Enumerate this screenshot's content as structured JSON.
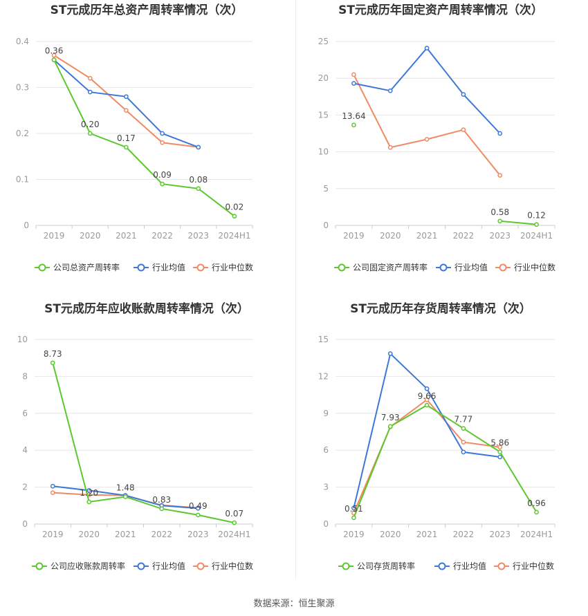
{
  "colors": {
    "company": "#5cc72e",
    "industry_avg": "#3b78d8",
    "industry_median": "#f08a63",
    "grid": "#e6e6e6",
    "axis_text": "#999999",
    "label_text": "#444444"
  },
  "source_text": "数据来源：恒生聚源",
  "chart_data": [
    {
      "type": "line",
      "title": "ST元成历年总资产周转率情况（次）",
      "categories": [
        "2019",
        "2020",
        "2021",
        "2022",
        "2023",
        "2024H1"
      ],
      "ylim": [
        0,
        0.4
      ],
      "yticks": [
        0,
        0.1,
        0.2,
        0.3,
        0.4
      ],
      "ytick_labels": [
        "0",
        "0.1",
        "0.2",
        "0.3",
        "0.4"
      ],
      "grid": true,
      "legend_position": "bottom",
      "series": [
        {
          "name": "公司总资产周转率",
          "role": "company",
          "values": [
            0.36,
            0.2,
            0.17,
            0.09,
            0.08,
            0.02
          ],
          "labels": [
            "0.36",
            "0.20",
            "0.17",
            "0.09",
            "0.08",
            "0.02"
          ]
        },
        {
          "name": "行业均值",
          "role": "industry_avg",
          "values": [
            0.36,
            0.29,
            0.28,
            0.2,
            0.17,
            null
          ]
        },
        {
          "name": "行业中位数",
          "role": "industry_median",
          "values": [
            0.37,
            0.32,
            0.25,
            0.18,
            0.17,
            null
          ]
        }
      ]
    },
    {
      "type": "line",
      "title": "ST元成历年固定资产周转率情况（次）",
      "categories": [
        "2019",
        "2020",
        "2021",
        "2022",
        "2023",
        "2024H1"
      ],
      "ylim": [
        0,
        25
      ],
      "yticks": [
        0,
        5,
        10,
        15,
        20,
        25
      ],
      "ytick_labels": [
        "0",
        "5",
        "10",
        "15",
        "20",
        "25"
      ],
      "grid": true,
      "legend_position": "bottom",
      "series": [
        {
          "name": "公司固定资产周转率",
          "role": "company",
          "values": [
            13.64,
            null,
            null,
            null,
            0.58,
            0.12
          ],
          "labels": [
            "13.64",
            null,
            null,
            null,
            "0.58",
            "0.12"
          ]
        },
        {
          "name": "行业均值",
          "role": "industry_avg",
          "values": [
            19.3,
            18.3,
            24.1,
            17.8,
            12.5,
            null
          ]
        },
        {
          "name": "行业中位数",
          "role": "industry_median",
          "values": [
            20.5,
            10.6,
            11.7,
            13.0,
            6.8,
            null
          ]
        }
      ]
    },
    {
      "type": "line",
      "title": "ST元成历年应收账款周转率情况（次）",
      "categories": [
        "2019",
        "2020",
        "2021",
        "2022",
        "2023",
        "2024H1"
      ],
      "ylim": [
        0,
        10
      ],
      "yticks": [
        0,
        2,
        4,
        6,
        8,
        10
      ],
      "ytick_labels": [
        "0",
        "2",
        "4",
        "6",
        "8",
        "10"
      ],
      "grid": true,
      "legend_position": "bottom",
      "series": [
        {
          "name": "公司应收账款周转率",
          "role": "company",
          "values": [
            8.73,
            1.2,
            1.48,
            0.83,
            0.49,
            0.07
          ],
          "labels": [
            "8.73",
            "1.20",
            "1.48",
            "0.83",
            "0.49",
            "0.07"
          ]
        },
        {
          "name": "行业均值",
          "role": "industry_avg",
          "values": [
            2.05,
            1.82,
            1.55,
            1.0,
            0.85,
            null
          ]
        },
        {
          "name": "行业中位数",
          "role": "industry_median",
          "values": [
            1.7,
            1.58,
            1.55,
            1.02,
            0.88,
            null
          ]
        }
      ]
    },
    {
      "type": "line",
      "title": "ST元成历年存货周转率情况（次）",
      "categories": [
        "2019",
        "2020",
        "2021",
        "2022",
        "2023",
        "2024H1"
      ],
      "ylim": [
        0,
        15
      ],
      "yticks": [
        0,
        3,
        6,
        9,
        12,
        15
      ],
      "ytick_labels": [
        "0",
        "3",
        "6",
        "9",
        "12",
        "15"
      ],
      "grid": true,
      "legend_position": "bottom",
      "series": [
        {
          "name": "公司存货周转率",
          "role": "company",
          "values": [
            0.51,
            7.93,
            9.66,
            7.77,
            5.86,
            0.96
          ],
          "labels": [
            "0.51",
            "7.93",
            "9.66",
            "7.77",
            "5.86",
            "0.96"
          ]
        },
        {
          "name": "行业均值",
          "role": "industry_avg",
          "values": [
            1.3,
            13.85,
            11.0,
            5.85,
            5.45,
            null
          ]
        },
        {
          "name": "行业中位数",
          "role": "industry_median",
          "values": [
            0.9,
            7.9,
            10.1,
            6.65,
            6.25,
            null
          ]
        }
      ]
    }
  ]
}
